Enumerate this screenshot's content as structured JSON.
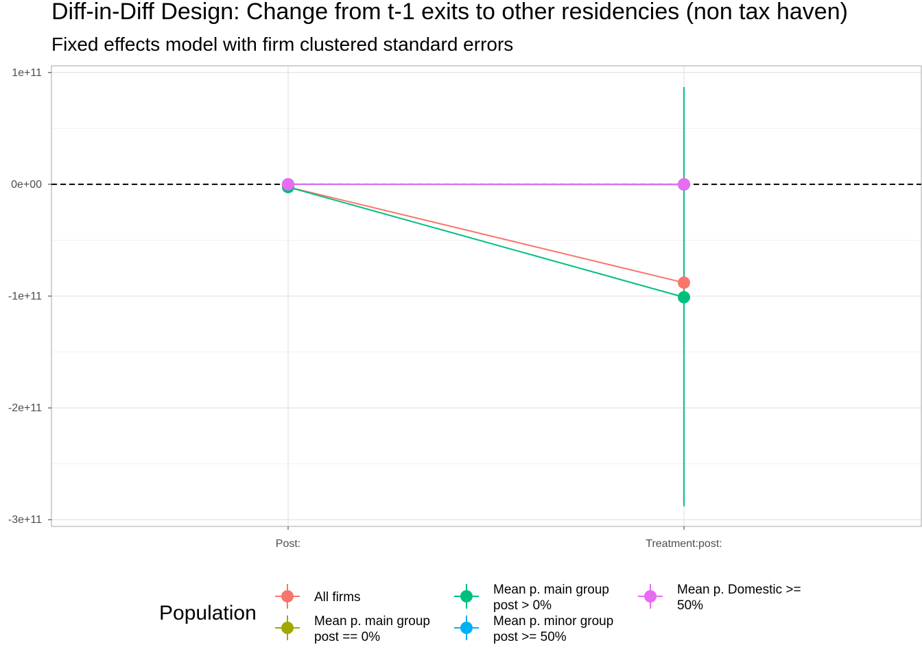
{
  "chart_data": {
    "type": "scatter",
    "title": "Diff-in-Diff Design: Change from t-1 exits to other residencies (non tax haven)",
    "subtitle": "Fixed effects model with firm clustered standard errors",
    "xlabel": "",
    "ylabel": "",
    "categories": [
      "Post:",
      "Treatment:post:"
    ],
    "ylim": [
      -306000000000,
      106000000000
    ],
    "yticks": [
      100000000000,
      0,
      -100000000000,
      -200000000000,
      -300000000000
    ],
    "ytick_labels": [
      "1e+11",
      "0e+00",
      "-1e+11",
      "-2e+11",
      "-3e+11"
    ],
    "reference_line": {
      "y": 0,
      "style": "dashed"
    },
    "grid": true,
    "legend": {
      "title": "Population",
      "position": "bottom"
    },
    "series": [
      {
        "name": "All firms",
        "color": "#F8766D",
        "values": [
          -2400000000,
          -88000000000
        ],
        "lower": [
          -2400000000,
          -88000000000
        ],
        "upper": [
          -2400000000,
          -88000000000
        ]
      },
      {
        "name": "Mean p. main group post == 0%",
        "color": "#A3A500",
        "values": [
          0,
          0
        ],
        "lower": [
          0,
          0
        ],
        "upper": [
          0,
          0
        ]
      },
      {
        "name": "Mean p. main group post > 0%",
        "color": "#00BF7D",
        "values": [
          -2500000000,
          -101000000000
        ],
        "lower": [
          -7400000000,
          -288000000000
        ],
        "upper": [
          2400000000,
          87000000000
        ]
      },
      {
        "name": "Mean p. minor group post >= 50%",
        "color": "#00B0F6",
        "values": [
          0,
          -200000000
        ],
        "lower": [
          0,
          -200000000
        ],
        "upper": [
          0,
          -200000000
        ]
      },
      {
        "name": "Mean p. Domestic >= 50%",
        "color": "#E76BF3",
        "values": [
          0,
          0
        ],
        "lower": [
          0,
          0
        ],
        "upper": [
          0,
          0
        ]
      }
    ],
    "legend_rows": [
      {
        "series": 0,
        "lines": [
          "All firms"
        ]
      },
      {
        "series": 1,
        "lines": [
          "Mean p. main group",
          "post == 0%"
        ]
      },
      {
        "series": 2,
        "lines": [
          "Mean p. main group",
          "post > 0%"
        ]
      },
      {
        "series": 3,
        "lines": [
          "Mean p. minor group",
          "post >= 50%"
        ]
      },
      {
        "series": 4,
        "lines": [
          "Mean p. Domestic >=",
          "50%"
        ]
      }
    ]
  }
}
